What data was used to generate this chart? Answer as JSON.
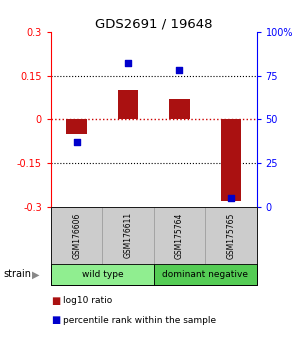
{
  "title": "GDS2691 / 19648",
  "samples": [
    "GSM176606",
    "GSM176611",
    "GSM175764",
    "GSM175765"
  ],
  "log10_ratio": [
    -0.05,
    0.1,
    0.07,
    -0.28
  ],
  "percentile_rank": [
    37,
    82,
    78,
    5
  ],
  "groups": [
    {
      "label": "wild type",
      "samples": [
        0,
        1
      ],
      "color": "#90ee90"
    },
    {
      "label": "dominant negative",
      "samples": [
        2,
        3
      ],
      "color": "#55cc55"
    }
  ],
  "ylim": [
    -0.3,
    0.3
  ],
  "yticks_left": [
    -0.3,
    -0.15,
    0,
    0.15,
    0.3
  ],
  "yticks_right": [
    0,
    25,
    50,
    75,
    100
  ],
  "bar_color": "#aa1111",
  "dot_color": "#0000cc",
  "sample_box_color": "#cccccc",
  "sample_box_edge": "#999999",
  "legend_bar": "log10 ratio",
  "legend_dot": "percentile rank within the sample",
  "label_strain": "strain"
}
